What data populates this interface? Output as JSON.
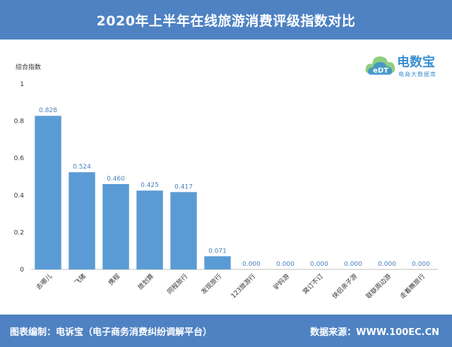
{
  "header": {
    "title": "2020年上半年在线旅游消费评级指数对比"
  },
  "footer": {
    "source_left": "图表编制：电诉宝（电子商务消费纠纷调解平台）",
    "source_right": "数据来源：WWW.100EC.CN"
  },
  "logo": {
    "brand": "电数宝",
    "sub": "电商大数据库",
    "mark": "eDT"
  },
  "colors": {
    "bar": "#5b9bd5",
    "header": "#4e82c3",
    "label": "#4a7ebb"
  },
  "chart_data": {
    "type": "bar",
    "ylabel": "综合指数",
    "ylim": [
      0,
      1
    ],
    "yticks": [
      "0",
      "0.2",
      "0.4",
      "0.6",
      "0.8",
      "1"
    ],
    "yticks_values": [
      0,
      0.2,
      0.4,
      0.6,
      0.8,
      1
    ],
    "categories": [
      "去哪儿",
      "飞猪",
      "携程",
      "旅划算",
      "同程旅行",
      "发现旅行",
      "123旅游行",
      "驴妈游",
      "窝订不订",
      "侠侣亲子游",
      "联联周边游",
      "走着瞧旅行"
    ],
    "values": [
      0.828,
      0.524,
      0.46,
      0.425,
      0.417,
      0.071,
      0.0,
      0.0,
      0.0,
      0.0,
      0.0,
      0.0
    ],
    "value_labels": [
      "0.828",
      "0.524",
      "0.460",
      "0.425",
      "0.417",
      "0.071",
      "0.000",
      "0.000",
      "0.000",
      "0.000",
      "0.000",
      "0.000"
    ]
  }
}
